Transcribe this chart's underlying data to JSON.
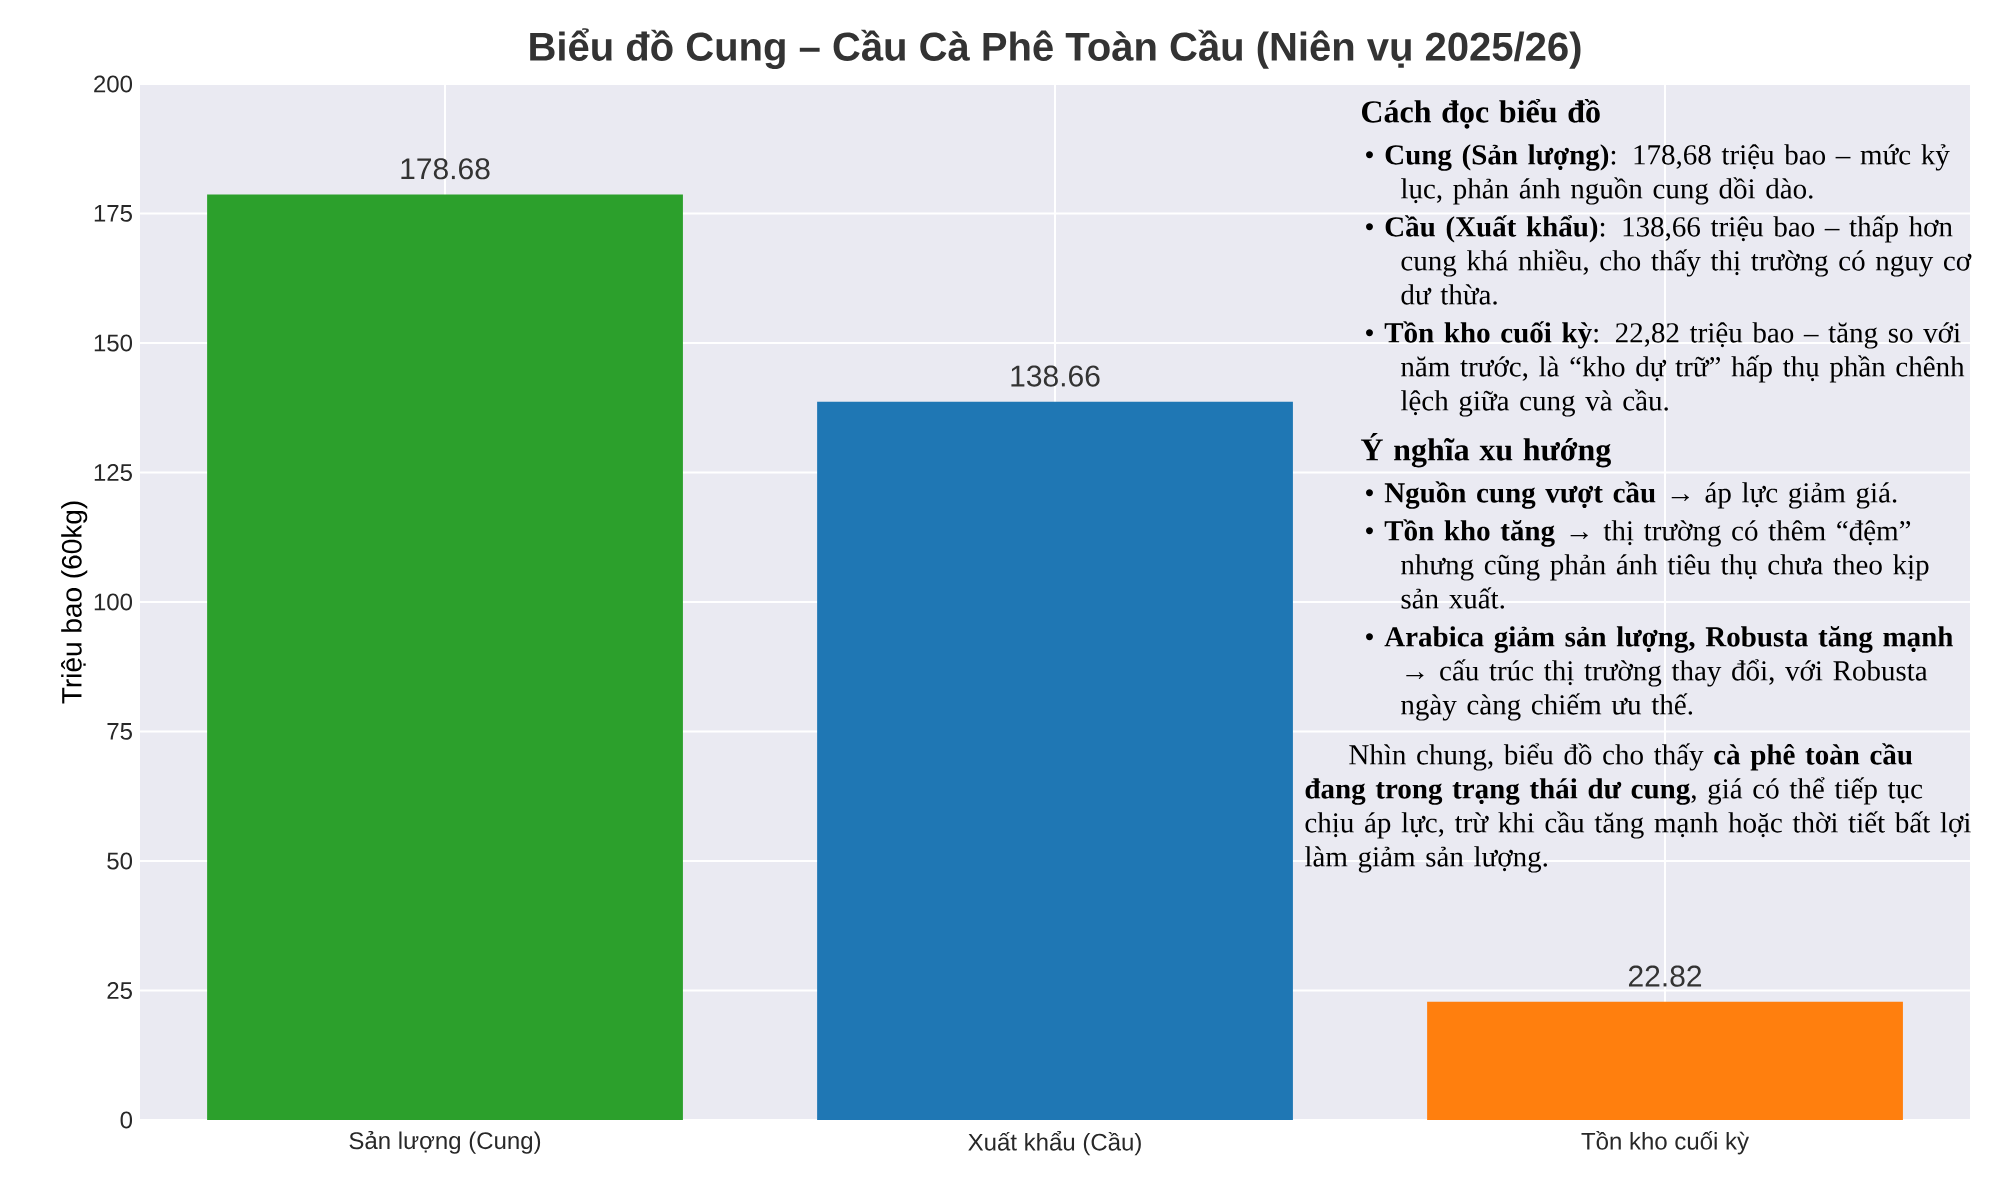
{
  "chart_data": {
    "type": "bar",
    "title": "Biểu đồ Cung – Cầu Cà Phê Toàn Cầu (Niên vụ 2025/26)",
    "ylabel": "Triệu bao (60kg)",
    "categories": [
      "Sản lượng (Cung)",
      "Xuất khẩu (Cầu)",
      "Tồn kho cuối kỳ"
    ],
    "values": [
      178.68,
      138.66,
      22.82
    ],
    "colors": [
      "#2ca02c",
      "#1f77b4",
      "#ff7f0e"
    ],
    "data_labels": true,
    "ylim": [
      0,
      200
    ],
    "yticks": [
      0,
      25,
      50,
      75,
      100,
      125,
      150,
      175,
      200
    ],
    "grid": true,
    "annotations": [
      "Cách đọc biểu đồ",
      "• **Cung (Sản lượng)**: 178,68 triệu bao – mức kỷ lục, phản ánh nguồn cung dồi dào.",
      "• **Cầu (Xuất khẩu)**: 138,66 triệu bao – thấp hơn cung khá nhiều, cho thấy thị trường có nguy cơ dư thừa.",
      "• **Tồn kho cuối kỳ**: 22,82 triệu bao – tăng so với năm trước, là “kho dự trữ” hấp thụ phần chênh lệch giữa cung và cầu.",
      "Ý nghĩa xu hướng",
      "• **Nguồn cung vượt cầu** → áp lực giảm giá.",
      "• **Tồn kho tăng** → thị trường có thêm “đệm” nhưng cũng phản ánh tiêu thụ chưa theo kịp sản xuất.",
      "• **Arabica giảm sản lượng, Robusta tăng mạnh** → cấu trúc thị trường thay đổi, với Robusta ngày càng chiếm ưu thế.",
      "Nhìn chung, biểu đồ cho thấy **cà phê toàn cầu đang trong trạng thái dư cung**, giá có thể tiếp tục chịu áp lực, trừ khi cầu tăng mạnh hoặc thời tiết bất lợi làm giảm sản lượng."
    ]
  }
}
